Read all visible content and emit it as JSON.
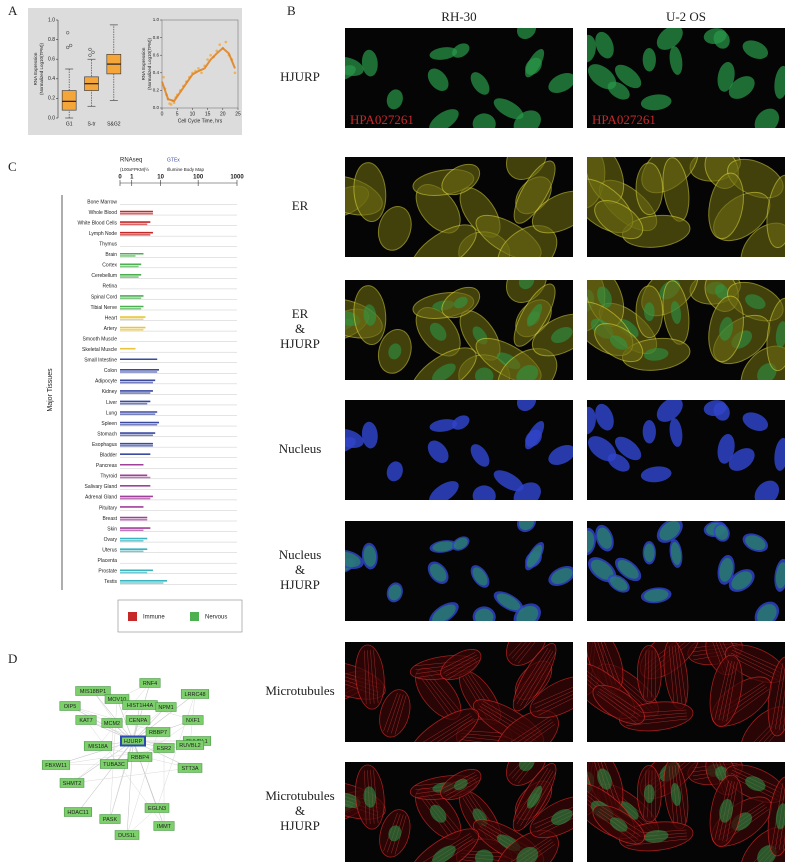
{
  "figure": {
    "panel_labels": [
      "A",
      "B",
      "C",
      "D"
    ],
    "cell_lines": [
      "RH-30",
      "U-2 OS"
    ],
    "channels": [
      [
        "HJURP"
      ],
      [
        "ER"
      ],
      [
        "ER",
        "&",
        "HJURP"
      ],
      [
        "Nucleus"
      ],
      [
        "Nucleus",
        "&",
        "HJURP"
      ],
      [
        "Microtubules"
      ],
      [
        "Microtubules",
        "&",
        "HJURP"
      ]
    ],
    "antibody": "HPA027261"
  },
  "network": {
    "nodes": [
      "RNF4",
      "MIS18BP1",
      "LRRC48",
      "MOV10",
      "HIST1H4A",
      "OIP5",
      "NPM1",
      "KAT7",
      "MCM2",
      "CENPA",
      "NXF1",
      "RBBP7",
      "HJURP",
      "RUVBL1",
      "FBXW11",
      "MIS18A",
      "ESR2",
      "RUVBL2",
      "SHMT2",
      "RBBP4",
      "TUBA3C",
      "STT3A",
      "HDAC11",
      "EGLN3",
      "PASK",
      "IMMT",
      "DUS1L"
    ]
  },
  "chart_data": [
    {
      "type": "box",
      "ylabel": [
        "RNA Expression",
        "(Normalized Log10(TPM))"
      ],
      "categories": [
        "G1",
        "S-tr",
        "S&G2"
      ],
      "min": [
        0,
        0.12,
        0.18
      ],
      "q1": [
        0.08,
        0.28,
        0.45
      ],
      "median": [
        0.17,
        0.35,
        0.55
      ],
      "q3": [
        0.28,
        0.42,
        0.65
      ],
      "max": [
        0.5,
        0.6,
        0.95
      ],
      "outliers": [
        [
          0.72,
          0.74,
          0.87
        ],
        [
          0.64,
          0.67,
          0.7
        ],
        []
      ],
      "color": "#f4a63a",
      "ylim": [
        0,
        1
      ],
      "yticks": [
        {
          "value": 0,
          "label": "0.0"
        },
        0.2,
        0.4,
        0.6,
        0.8,
        {
          "value": 1,
          "label": "1.0"
        }
      ]
    },
    {
      "type": "scatter",
      "ylabel": [
        "RNA Expression",
        "(Normalized Log10(TPM))"
      ],
      "xlabel": "Cell Cycle Time, hrs",
      "x": [
        0.5,
        1,
        1.5,
        2,
        2.5,
        3,
        3.5,
        4,
        4.5,
        5,
        6,
        7,
        8,
        9,
        10,
        11,
        12,
        13,
        14,
        15,
        16,
        17,
        18,
        19,
        20,
        21,
        22,
        23,
        24
      ],
      "y": [
        0.35,
        0.22,
        0.15,
        0.1,
        0.05,
        0.04,
        0.08,
        0.06,
        0.12,
        0.15,
        0.2,
        0.25,
        0.3,
        0.35,
        0.4,
        0.42,
        0.45,
        0.4,
        0.48,
        0.55,
        0.6,
        0.58,
        0.65,
        0.72,
        0.68,
        0.75,
        0.6,
        0.55,
        0.4
      ],
      "fit": {
        "x": [
          0,
          2,
          4,
          6,
          8,
          10,
          12,
          14,
          16,
          18,
          20,
          22,
          24
        ],
        "y": [
          0.3,
          0.1,
          0.08,
          0.18,
          0.28,
          0.38,
          0.42,
          0.45,
          0.55,
          0.62,
          0.68,
          0.62,
          0.45
        ]
      },
      "color": "#f4a63a",
      "fit_color": "#e07b10",
      "xlim": [
        0,
        25
      ],
      "xticks": [
        0,
        5,
        10,
        15,
        20,
        25
      ],
      "ylim": [
        0,
        1
      ],
      "yticks": [
        {
          "value": 0,
          "label": "0.0"
        },
        0.2,
        0.4,
        0.6,
        0.8,
        {
          "value": 1,
          "label": "1.0"
        }
      ]
    },
    {
      "type": "bar",
      "orientation": "horizontal",
      "ylabel": "Major Tissues",
      "axis_unit": "(100xFPKM)½",
      "source_note": "Illumine Body Map",
      "categories": [
        "Bone Marrow",
        "Whole Blood",
        "White Blood Cells",
        "Lymph Node",
        "Thymus",
        "Brain",
        "Cortex",
        "Cerebellum",
        "Retina",
        "Spinal Cord",
        "Tibial Nerve",
        "Heart",
        "Artery",
        "Smooth Muscle",
        "Skeletal Muscle",
        "Small Intestine",
        "Colon",
        "Adipocyte",
        "Kidney",
        "Liver",
        "Lung",
        "Spleen",
        "Stomach",
        "Esophagus",
        "Bladder",
        "Pancreas",
        "Thyroid",
        "Salivary Gland",
        "Adrenal Gland",
        "Pituitary",
        "Breast",
        "Skin",
        "Ovary",
        "Uterus",
        "Placenta",
        "Prostate",
        "Testis"
      ],
      "colors": [
        "#c62828",
        "#c62828",
        "#c62828",
        "#c62828",
        "#c62828",
        "#4caf50",
        "#4caf50",
        "#4caf50",
        "#4caf50",
        "#4caf50",
        "#4caf50",
        "#e8c53a",
        "#e8c53a",
        "#e8c53a",
        "#e8c53a",
        "#3a4aa0",
        "#3a4aa0",
        "#3a4aa0",
        "#3a4aa0",
        "#3a4aa0",
        "#3a4aa0",
        "#3a4aa0",
        "#3a4aa0",
        "#3a4aa0",
        "#3a4aa0",
        "#a0409a",
        "#a0409a",
        "#a0409a",
        "#a0409a",
        "#a0409a",
        "#a0409a",
        "#a0409a",
        "#3ab5c0",
        "#3ab5c0",
        "#3ab5c0",
        "#3ab5c0",
        "#3ab5c0"
      ],
      "series": [
        {
          "name": "RNAseq",
          "values": [
            0,
            6,
            5,
            6,
            0,
            3,
            2.5,
            2.5,
            0,
            3,
            3,
            3.5,
            3.5,
            0,
            1.5,
            8,
            9,
            7,
            6,
            5,
            8,
            9,
            7,
            6,
            5,
            3,
            4,
            5,
            6,
            3,
            4,
            5,
            4,
            4,
            0,
            6,
            15
          ]
        },
        {
          "name": "GTEx",
          "values": [
            0,
            6,
            4,
            5,
            0,
            1.5,
            2,
            2,
            0,
            2.5,
            2.5,
            3,
            3,
            0,
            0,
            0,
            8,
            6,
            5,
            4,
            7,
            8,
            6,
            6,
            0,
            0,
            5,
            0,
            5,
            0,
            4,
            3,
            3,
            3,
            0,
            4,
            12
          ]
        }
      ],
      "xscale": "log1p",
      "xlim": [
        0,
        1000
      ],
      "xticks": [
        0,
        1,
        10,
        100,
        1000
      ],
      "legend": [
        {
          "name": "Immune",
          "color": "#c62828"
        },
        {
          "name": "Nervous",
          "color": "#4caf50"
        }
      ]
    }
  ]
}
